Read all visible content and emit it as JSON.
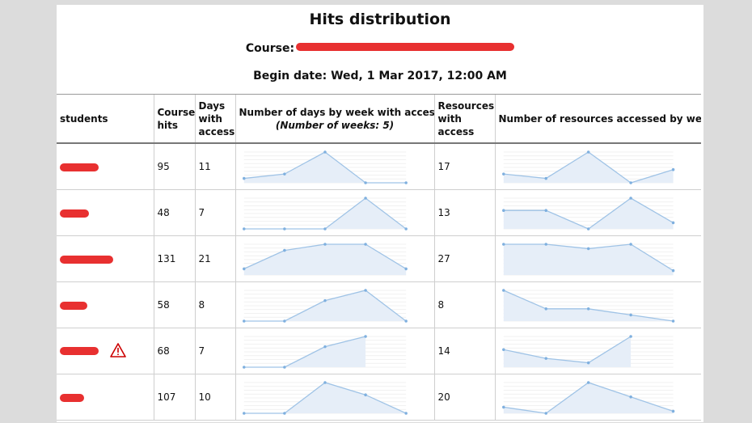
{
  "report": {
    "title": "Hits distribution",
    "course_label": "Course:",
    "begin_date": "Begin date: Wed, 1 Mar 2017, 12:00 AM"
  },
  "table": {
    "headers": {
      "students": "students",
      "course_hits": "Course hits",
      "days_with_access": "Days with access",
      "days_by_week": "Number of days by week with access",
      "weeks_note": "(Number of weeks: 5)",
      "resources_with_access": "Resources with access",
      "resources_by_week": "Number of resources accessed by week"
    },
    "rows": [
      {
        "hits": "95",
        "days": "11",
        "resources": "17",
        "warning": false,
        "days_week": [
          1,
          2,
          7,
          0,
          0
        ],
        "res_week": [
          2,
          1,
          7,
          0,
          3
        ]
      },
      {
        "hits": "48",
        "days": "7",
        "resources": "13",
        "warning": false,
        "days_week": [
          0,
          0,
          0,
          3,
          0
        ],
        "res_week": [
          3,
          3,
          0,
          5,
          1
        ]
      },
      {
        "hits": "131",
        "days": "21",
        "resources": "27",
        "warning": false,
        "days_week": [
          1,
          4,
          5,
          5,
          1
        ],
        "res_week": [
          7,
          7,
          6,
          7,
          1
        ]
      },
      {
        "hits": "58",
        "days": "8",
        "resources": "8",
        "warning": false,
        "days_week": [
          0,
          0,
          2,
          3,
          0
        ],
        "res_week": [
          5,
          2,
          2,
          1,
          0
        ]
      },
      {
        "hits": "68",
        "days": "7",
        "resources": "14",
        "warning": true,
        "days_week": [
          0,
          0,
          2,
          3,
          null
        ],
        "res_week": [
          4,
          2,
          1,
          7,
          null
        ]
      },
      {
        "hits": "107",
        "days": "10",
        "resources": "20",
        "warning": false,
        "days_week": [
          0,
          0,
          5,
          3,
          0
        ],
        "res_week": [
          3,
          0,
          15,
          8,
          1
        ]
      }
    ]
  },
  "colors": {
    "line": "#9fc3e6",
    "fill": "#e6eef8",
    "dot": "#7fb0df",
    "grid": "#ececec",
    "redaction": "#e83030",
    "warning": "#cc0000"
  }
}
